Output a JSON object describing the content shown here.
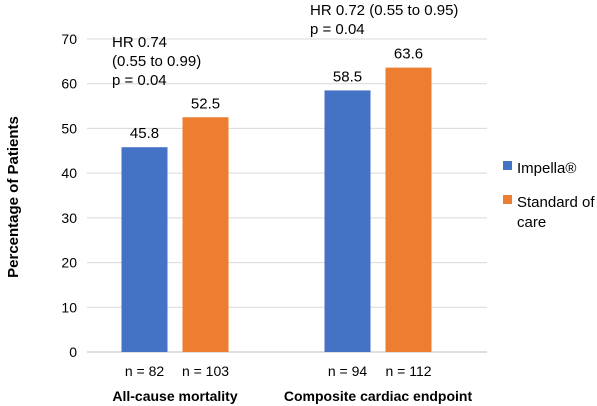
{
  "chart_data": {
    "type": "bar",
    "title": "",
    "xlabel": "",
    "ylabel": "Percentage of Patients",
    "ylim": [
      0,
      70
    ],
    "yticks": [
      0,
      10,
      20,
      30,
      40,
      50,
      60,
      70
    ],
    "grid": true,
    "legend_position": "right",
    "categories": [
      "All-cause mortality",
      "Composite cardiac endpoint"
    ],
    "series": [
      {
        "name": "Impella®",
        "color": "#4472C4",
        "values": [
          45.8,
          58.5
        ],
        "value_labels": [
          "45.8",
          "58.5"
        ],
        "counts": [
          "n = 82",
          "n = 94"
        ]
      },
      {
        "name": "Standard of care",
        "color": "#ED7D31",
        "values": [
          52.5,
          63.6
        ],
        "value_labels": [
          "52.5",
          "63.6"
        ],
        "counts": [
          "n = 103",
          "n = 112"
        ]
      }
    ],
    "legend_lines": [
      [
        "Impella®"
      ],
      [
        "Standard of",
        "care"
      ]
    ],
    "annotations": [
      {
        "category": "All-cause mortality",
        "lines": [
          "HR 0.74",
          "(0.55 to 0.99)",
          "p = 0.04"
        ]
      },
      {
        "category": "Composite cardiac endpoint",
        "lines": [
          "HR 0.72 (0.55 to 0.95)",
          "p = 0.04"
        ]
      }
    ]
  }
}
